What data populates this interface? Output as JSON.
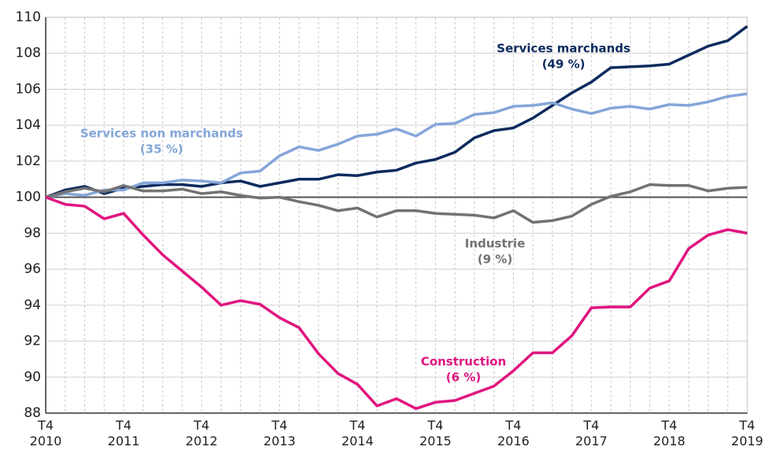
{
  "chart_data": {
    "type": "line",
    "categories": [
      "T4\n2010",
      null,
      null,
      null,
      "T4\n2011",
      null,
      null,
      null,
      "T4\n2012",
      null,
      null,
      null,
      "T4\n2013",
      null,
      null,
      null,
      "T4\n2014",
      null,
      null,
      null,
      "T4\n2015",
      null,
      null,
      null,
      "T4\n2016",
      null,
      null,
      null,
      "T4\n2017",
      null,
      null,
      null,
      "T4\n2018",
      null,
      null,
      null,
      "T4\n2019"
    ],
    "series": [
      {
        "name": "Services marchands",
        "label": "(49 %)",
        "color": "#0d2b5e",
        "values": [
          100,
          100.4,
          100.6,
          100.2,
          100.5,
          100.6,
          100.7,
          100.7,
          100.6,
          100.8,
          100.9,
          100.6,
          100.8,
          101.0,
          101.0,
          101.25,
          101.2,
          101.4,
          101.5,
          101.9,
          102.1,
          102.5,
          103.3,
          103.7,
          103.85,
          104.4,
          105.1,
          105.8,
          106.4,
          107.2,
          107.25,
          107.3,
          107.4,
          107.9,
          108.4,
          108.7,
          109.5
        ]
      },
      {
        "name": "Services non marchands",
        "label": "(35 %)",
        "color": "#84a6d8",
        "values": [
          100,
          100.2,
          100.1,
          100.4,
          100.4,
          100.8,
          100.8,
          100.95,
          100.9,
          100.8,
          101.35,
          101.45,
          102.3,
          102.8,
          102.6,
          102.95,
          103.4,
          103.5,
          103.8,
          103.4,
          104.05,
          104.1,
          104.6,
          104.7,
          105.05,
          105.1,
          105.25,
          104.9,
          104.65,
          104.95,
          105.05,
          104.9,
          105.15,
          105.1,
          105.3,
          105.6,
          105.75
        ]
      },
      {
        "name": "Industrie",
        "label": "(9 %)",
        "color": "#727272",
        "values": [
          100,
          100.3,
          100.5,
          100.3,
          100.65,
          100.35,
          100.35,
          100.45,
          100.2,
          100.3,
          100.1,
          99.95,
          100.0,
          99.75,
          99.55,
          99.25,
          99.4,
          98.9,
          99.25,
          99.25,
          99.1,
          99.05,
          99.0,
          98.85,
          99.25,
          98.6,
          98.7,
          98.95,
          99.6,
          100.05,
          100.3,
          100.7,
          100.65,
          100.65,
          100.35,
          100.5,
          100.55
        ]
      },
      {
        "name": "Construction",
        "label": "(6 %)",
        "color": "#e0157f",
        "values": [
          100,
          99.6,
          99.5,
          98.8,
          99.1,
          97.9,
          96.8,
          95.9,
          95.0,
          94.0,
          94.25,
          94.05,
          93.3,
          92.75,
          91.3,
          90.2,
          89.6,
          88.4,
          88.8,
          88.25,
          88.6,
          88.7,
          89.1,
          89.5,
          90.35,
          91.35,
          91.35,
          92.3,
          93.85,
          93.9,
          93.9,
          94.95,
          95.35,
          97.15,
          97.9,
          98.2,
          98.0
        ]
      }
    ],
    "ylim": [
      88,
      110
    ],
    "yticks": [
      88,
      90,
      92,
      94,
      96,
      98,
      100,
      102,
      104,
      106,
      108,
      110
    ],
    "reference_line": 100,
    "grid": true
  }
}
